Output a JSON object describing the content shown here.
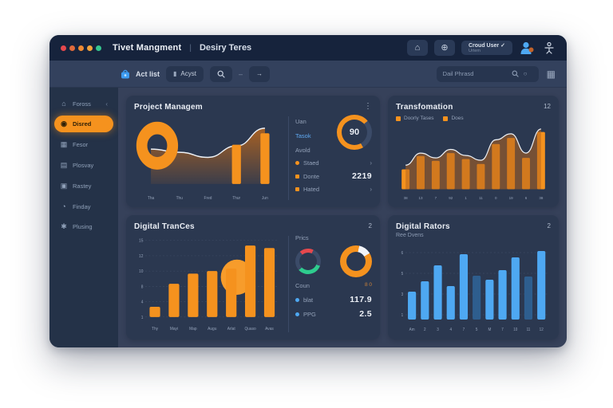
{
  "colors": {
    "orange": "#F5921E",
    "orange_light": "#F79C2B",
    "blue": "#4EA8F2",
    "blue_dark": "#2E5E8E",
    "green": "#2ECC8E",
    "red": "#E5484D",
    "line": "#EEF2F7",
    "muted": "#93A1B8",
    "card": "#2B3850"
  },
  "titlebar": {
    "traffic_colors": [
      "#E5484D",
      "#E06A3B",
      "#EE8A33",
      "#F2A33C",
      "#35C58F"
    ],
    "app_title": "Tivet Mangment",
    "divider": "|",
    "doc_title": "Desiry Teres",
    "home_icon": "⌂",
    "globe_icon": "⊕",
    "user_menu": {
      "label": "Croud User",
      "check": "✓",
      "sub": "Urtem"
    }
  },
  "toolbar": {
    "act_label": "Act list",
    "agent_button": "Acyst",
    "agent_icon": "▮",
    "dash": "–",
    "arrow": "→",
    "search_placeholder": "Dail Phrasd",
    "search_glyph": "○",
    "grid_icon": "▦"
  },
  "sidebar": {
    "items": [
      {
        "label": "Foross",
        "glyph": "⌂",
        "chevron": "‹"
      },
      {
        "label": "Disred",
        "glyph": "◉"
      },
      {
        "label": "Fesor",
        "glyph": "▦"
      },
      {
        "label": "Plosvay",
        "glyph": "▤"
      },
      {
        "label": "Rastey",
        "glyph": "▣"
      },
      {
        "label": "Finday",
        "glyph": "◔"
      },
      {
        "label": "Plusing",
        "glyph": "✱"
      }
    ]
  },
  "panels": {
    "project": {
      "title": "Project Managem",
      "menu_icon": "⋮",
      "stats_labels": [
        "Uan",
        "Tasok",
        "Avold"
      ],
      "gauge_value": "90",
      "rows": [
        {
          "label": "Staed",
          "chevron": "›"
        },
        {
          "label": "Donte",
          "value": "2219"
        },
        {
          "label": "Hated",
          "chevron": "›"
        }
      ]
    },
    "transformation": {
      "title": "Transfomation",
      "badge": "12",
      "legend": [
        "Doorly Tases",
        "Does"
      ]
    },
    "trances": {
      "title": "Digital TranCes",
      "badge": "2",
      "stats": {
        "header": "Prics",
        "count_label": "Coun",
        "count_value": "8 0",
        "rows": [
          {
            "label": "blat",
            "value": "117.9"
          },
          {
            "label": "PPG",
            "value": "2.5"
          }
        ]
      }
    },
    "rators": {
      "title": "Digital Rators",
      "badge": "2",
      "subtitle": "Ree Dvens"
    }
  },
  "chart_data": [
    {
      "id": "project-combo",
      "type": "line",
      "title": "Project Managem",
      "x": [
        "Tha",
        "Thu",
        "Fred",
        "Thur",
        "Jun"
      ],
      "line_values": [
        55,
        50,
        42,
        60,
        88
      ],
      "bar_values": [
        null,
        null,
        null,
        62,
        80
      ],
      "ylim": [
        0,
        100
      ],
      "grid": false,
      "decorations": [
        "large-orange-donut-left"
      ]
    },
    {
      "id": "transformation",
      "type": "bar",
      "title": "Transfomation",
      "categories": [
        "38",
        "13",
        "7",
        "92",
        "1",
        "11",
        "0",
        "19",
        "6",
        "38"
      ],
      "series": [
        {
          "name": "Doorly Tases",
          "type": "bar",
          "values": [
            33,
            55,
            47,
            60,
            50,
            42,
            75,
            85,
            52,
            95
          ]
        },
        {
          "name": "Does",
          "type": "line",
          "values": [
            40,
            60,
            52,
            66,
            56,
            48,
            82,
            92,
            60,
            100
          ]
        }
      ],
      "ylim": [
        0,
        100
      ],
      "grid": false,
      "legend_position": "top"
    },
    {
      "id": "digital-trances",
      "type": "bar",
      "title": "Digital TranCes",
      "categories": [
        "Thy",
        "Mayi",
        "Map",
        "Augu",
        "Arlat",
        "Quaso",
        "Avas"
      ],
      "values": [
        2,
        6.5,
        8.5,
        9,
        9.5,
        14,
        13.5
      ],
      "yticks": [
        "15",
        "12",
        "10",
        "8",
        "4",
        "1"
      ],
      "ylim": [
        0,
        15
      ],
      "grid": true,
      "decorations": [
        "orange-circle-behind-bar-5"
      ]
    },
    {
      "id": "digital-rators",
      "type": "bar",
      "title": "Digital Rators",
      "subtitle": "Ree Dvens",
      "categories": [
        "Am",
        "2",
        "3",
        "4",
        "7",
        "5",
        "M",
        "7",
        "10",
        "11",
        "12"
      ],
      "values": [
        3.5,
        4.8,
        6.8,
        4.2,
        8.2,
        5.5,
        5.0,
        6.2,
        7.8,
        5.4,
        8.6
      ],
      "dark_bar_indexes": [
        5,
        9
      ],
      "yticks": [
        "6",
        "5",
        "3",
        "1"
      ],
      "ylim": [
        0,
        9
      ],
      "grid": true
    }
  ]
}
